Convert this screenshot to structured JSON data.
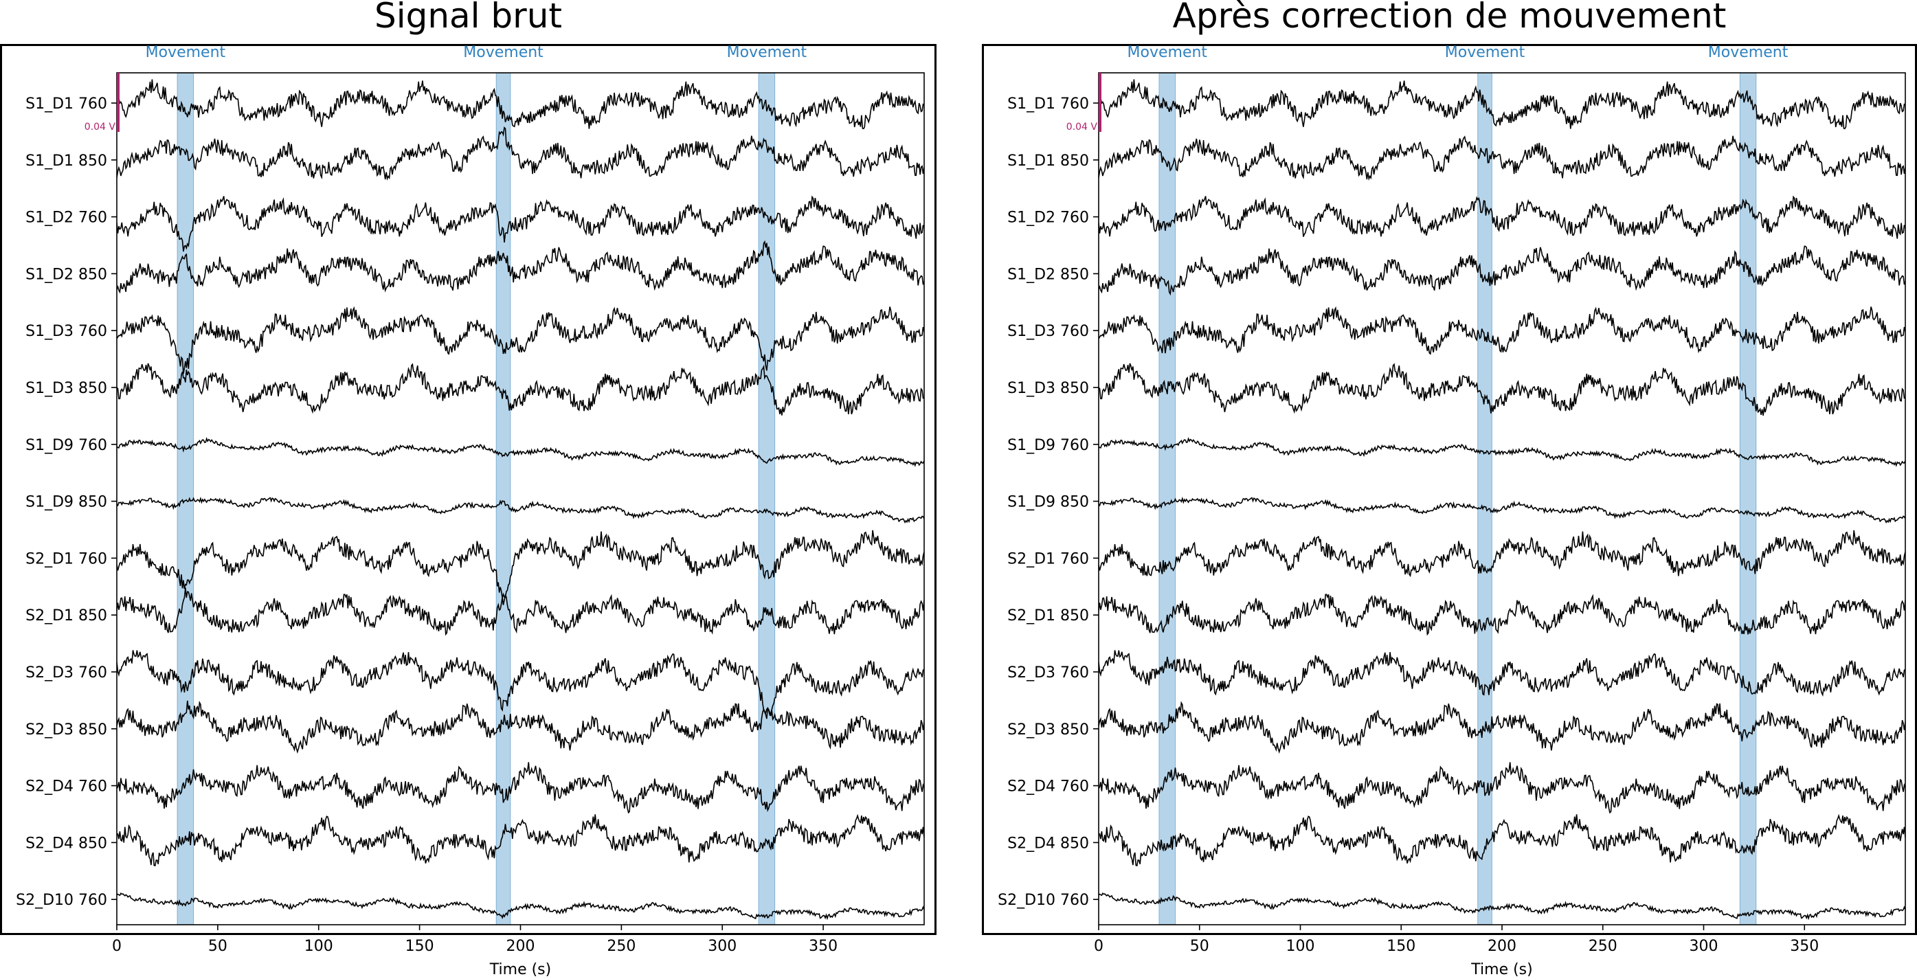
{
  "chart_data": [
    {
      "type": "line",
      "title": "Signal brut",
      "xlabel": "Time (s)",
      "xlim": [
        0,
        400
      ],
      "xticks": [
        0,
        50,
        100,
        150,
        200,
        250,
        300,
        350
      ],
      "channels": [
        "S1_D1 760",
        "S1_D1 850",
        "S1_D2 760",
        "S1_D2 850",
        "S1_D3 760",
        "S1_D3 850",
        "S1_D9 760",
        "S1_D9 850",
        "S2_D1 760",
        "S2_D1 850",
        "S2_D3 760",
        "S2_D3 850",
        "S2_D4 760",
        "S2_D4 850",
        "S2_D10 760"
      ],
      "annotations": [
        {
          "label": "Movement",
          "onset": 30,
          "duration": 8
        },
        {
          "label": "Movement",
          "onset": 188,
          "duration": 7
        },
        {
          "label": "Movement",
          "onset": 318,
          "duration": 8
        }
      ],
      "scale_bar": "0.04 V",
      "grid": false
    },
    {
      "type": "line",
      "title": "Après correction de mouvement",
      "xlabel": "Time (s)",
      "xlim": [
        0,
        400
      ],
      "xticks": [
        0,
        50,
        100,
        150,
        200,
        250,
        300,
        350
      ],
      "channels": [
        "S1_D1 760",
        "S1_D1 850",
        "S1_D2 760",
        "S1_D2 850",
        "S1_D3 760",
        "S1_D3 850",
        "S1_D9 760",
        "S1_D9 850",
        "S2_D1 760",
        "S2_D1 850",
        "S2_D3 760",
        "S2_D3 850",
        "S2_D4 760",
        "S2_D4 850",
        "S2_D10 760"
      ],
      "annotations": [
        {
          "label": "Movement",
          "onset": 30,
          "duration": 8
        },
        {
          "label": "Movement",
          "onset": 188,
          "duration": 7
        },
        {
          "label": "Movement",
          "onset": 318,
          "duration": 8
        }
      ],
      "scale_bar": "0.04 V",
      "grid": false
    }
  ],
  "colors": {
    "trace": "#000000",
    "annotation_fill": "#a9cce5",
    "annotation_text": "#2f82c0",
    "scale_bar": "#b0226c"
  }
}
